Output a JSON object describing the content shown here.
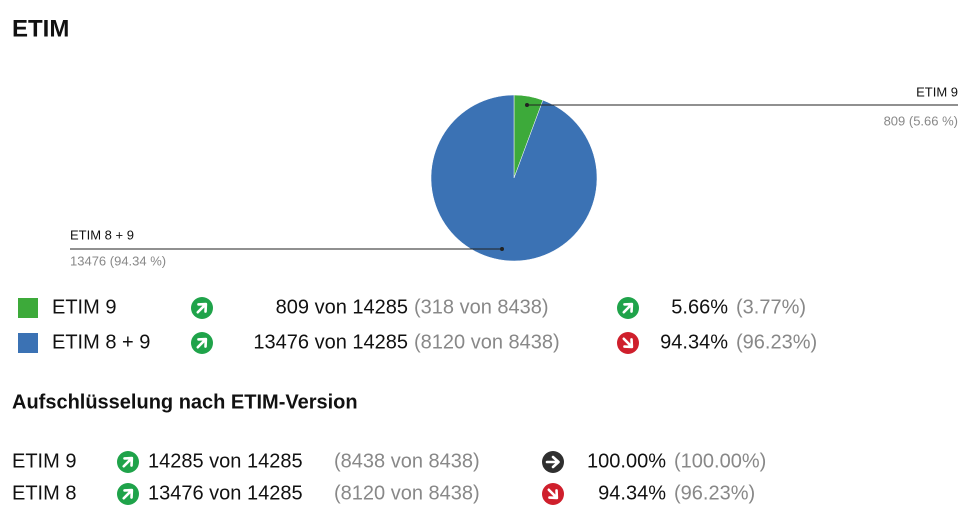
{
  "chart_data": {
    "type": "pie",
    "title": "ETIM",
    "categories": [
      "ETIM 9",
      "ETIM 8 + 9"
    ],
    "values": [
      809,
      13476
    ],
    "value_labels": [
      "809 (5.66 %)",
      "13476 (94.34 %)"
    ],
    "colors": [
      "#3daa3a",
      "#3b72b4"
    ]
  },
  "legend_table": {
    "rows": [
      {
        "count": "809 von 14285",
        "previous_count": "(318 von 8438)",
        "count_trend": "up",
        "share": "5.66%",
        "previous_share": "(3.77%)",
        "share_trend": "up"
      },
      {
        "count": "13476 von 14285",
        "previous_count": "(8120 von 8438)",
        "count_trend": "up",
        "share": "94.34%",
        "previous_share": "(96.23%)",
        "share_trend": "down"
      }
    ]
  },
  "breakdown": {
    "title": "Aufschlüsselung nach ETIM-Version",
    "rows": [
      {
        "name": "ETIM 9",
        "count": "14285 von 14285",
        "previous_count": "(8438 von 8438)",
        "count_trend": "up",
        "share": "100.00%",
        "previous_share": "(100.00%)",
        "share_trend": "right"
      },
      {
        "name": "ETIM 8",
        "count": "13476 von 14285",
        "previous_count": "(8120 von 8438)",
        "count_trend": "up",
        "share": "94.34%",
        "previous_share": "(96.23%)",
        "share_trend": "down"
      }
    ]
  }
}
